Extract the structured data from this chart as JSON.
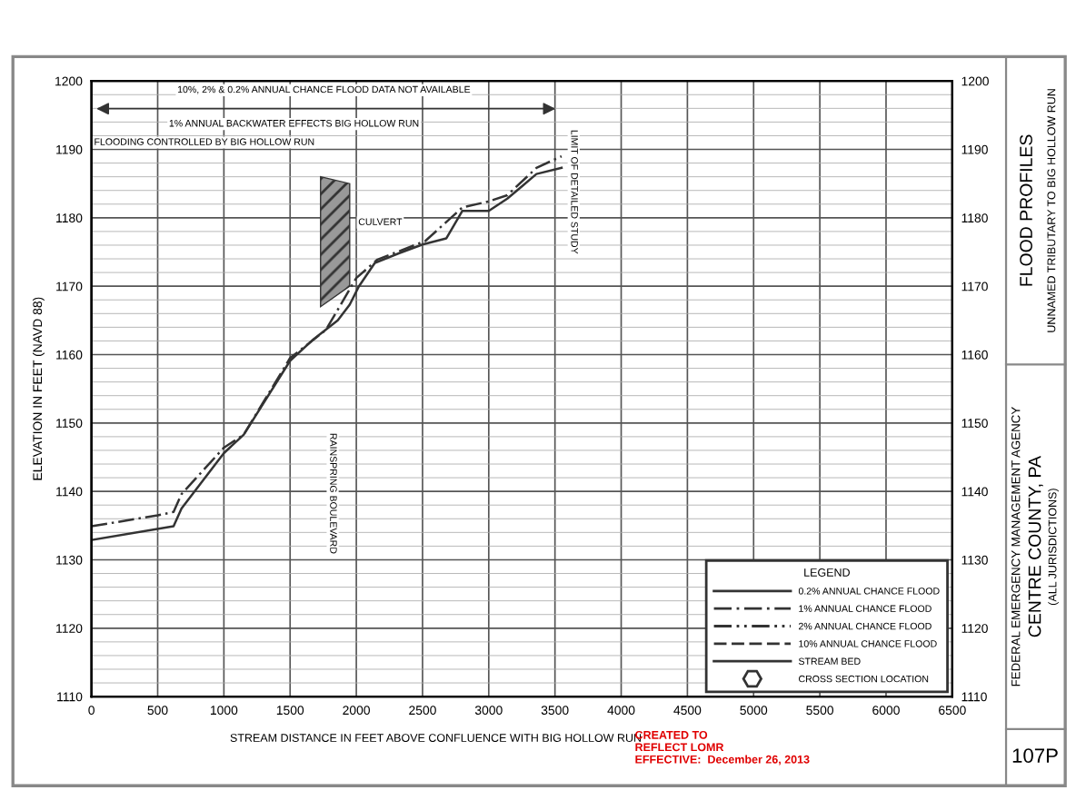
{
  "chart_data": {
    "type": "line",
    "title": "FLOOD PROFILES",
    "subtitle": "UNNAMED TRIBUTARY TO BIG HOLLOW RUN",
    "xlabel": "STREAM DISTANCE IN FEET ABOVE CONFLUENCE WITH BIG HOLLOW RUN",
    "ylabel": "ELEVATION IN FEET (NAVD 88)",
    "legend_title": "LEGEND",
    "xlim": [
      0,
      6500
    ],
    "xticks": [
      0,
      500,
      1000,
      1500,
      2000,
      2500,
      3000,
      3500,
      4000,
      4500,
      5000,
      5500,
      6000,
      6500
    ],
    "ylim": [
      1110,
      1200
    ],
    "yticks": [
      1110,
      1120,
      1130,
      1140,
      1150,
      1160,
      1170,
      1180,
      1190,
      1200
    ],
    "y2lim": [
      1110,
      1200
    ],
    "y2ticks": [
      1110,
      1120,
      1130,
      1140,
      1150,
      1160,
      1170,
      1180,
      1190,
      1200
    ],
    "grid": true,
    "legend": "bottom right",
    "series": [
      {
        "name": "1% ANNUAL CHANCE FLOOD",
        "color": "#333333",
        "line_style": "dashdot",
        "x": [
          0,
          500,
          620,
          680,
          1000,
          1150,
          1500,
          1770,
          2000,
          2160,
          2520,
          2800,
          3000,
          3140,
          3360,
          3550
        ],
        "values": [
          1134.9,
          1136.5,
          1137,
          1139.6,
          1146.4,
          1148.3,
          1159.5,
          1163.6,
          1171.2,
          1173.9,
          1176.6,
          1181.5,
          1182.4,
          1183.3,
          1187.3,
          1189
        ]
      },
      {
        "name": "STREAM BED",
        "color": "#333333",
        "line_style": "solid",
        "x": [
          0,
          620,
          680,
          1000,
          1150,
          1500,
          1680,
          1860,
          1950,
          2020,
          2140,
          2320,
          2500,
          2680,
          2800,
          3000,
          3140,
          3250,
          3360,
          3550
        ],
        "values": [
          1132.9,
          1134.9,
          1137.5,
          1145.6,
          1148.3,
          1159.1,
          1162.3,
          1165,
          1167.3,
          1170,
          1173.4,
          1174.8,
          1176.1,
          1177,
          1181,
          1181,
          1182.8,
          1184.6,
          1186.4,
          1187.3
        ]
      }
    ],
    "annotations": [
      "10%, 2% & 0.2% ANNUAL CHANCE FLOOD DATA NOT AVAILABLE",
      "FLOODING CONTROLLED BY BIG HOLLOW RUN",
      "1% ANNUAL BACKWATER EFFECTS BIG HOLLOW RUN",
      "CULVERT",
      "LIMIT OF DETAILED STUDY",
      "RAINSPRING BOULEVARD",
      "FEDERAL EMERGENCY MANAGEMENT AGENCY",
      "CENTRE COUNTY, PA",
      "(ALL JURISDICTIONS)",
      "107P",
      "CREATED TO\nREFLECT LOMR\nEFFECTIVE:  December 26, 2013",
      "0.2% ANNUAL CHANCE FLOOD",
      "2% ANNUAL CHANCE FLOOD",
      "10% ANNUAL CHANCE FLOOD",
      "CROSS SECTION LOCATION"
    ]
  }
}
